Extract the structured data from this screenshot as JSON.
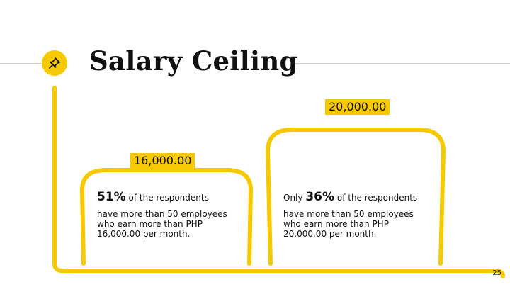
{
  "title": "Salary Ceiling",
  "accent_color": "#f7c900",
  "icons": {
    "pin": "pushpin-icon"
  },
  "blocks": [
    {
      "value": "20,000.00",
      "prefix": "Only",
      "percent": "36%",
      "headline_suffix": "of the respondents",
      "body": "have more than 50 employees who earn more than PHP 20,000.00 per month."
    },
    {
      "value": "16,000.00",
      "prefix": "",
      "percent": "51%",
      "headline_suffix": "of the respondents",
      "body": "have more than 50 employees who earn more than PHP 16,000.00 per month."
    }
  ],
  "page_number": "25"
}
